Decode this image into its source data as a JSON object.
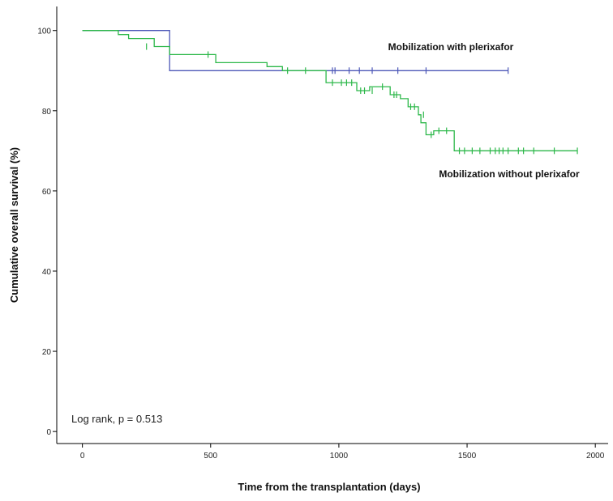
{
  "chart_data": {
    "type": "line",
    "title": "",
    "xlabel": "Time from the transplantation (days)",
    "ylabel": "Cumulative overall survival (%)",
    "xlim": [
      -100,
      2050
    ],
    "ylim": [
      -3,
      106
    ],
    "x_ticks": [
      0,
      500,
      1000,
      1500,
      2000
    ],
    "y_ticks": [
      0,
      20,
      40,
      60,
      80,
      100
    ],
    "grid": false,
    "annotation": "Log rank, p = 0.513",
    "series": [
      {
        "name": "Mobilization with plerixafor",
        "color": "#4d58b8",
        "step": true,
        "x": [
          0,
          340,
          340,
          1660
        ],
        "y": [
          100,
          100,
          90,
          90
        ],
        "censored": [
          {
            "x": 975,
            "y": 90
          },
          {
            "x": 985,
            "y": 90
          },
          {
            "x": 1040,
            "y": 90
          },
          {
            "x": 1080,
            "y": 90
          },
          {
            "x": 1130,
            "y": 90
          },
          {
            "x": 1230,
            "y": 90
          },
          {
            "x": 1340,
            "y": 90
          },
          {
            "x": 1660,
            "y": 90
          }
        ]
      },
      {
        "name": "Mobilization without plerixafor",
        "color": "#2db84a",
        "step": true,
        "x": [
          0,
          140,
          140,
          180,
          180,
          280,
          280,
          340,
          340,
          520,
          520,
          720,
          720,
          780,
          780,
          950,
          950,
          1070,
          1070,
          1120,
          1120,
          1200,
          1200,
          1240,
          1240,
          1270,
          1270,
          1310,
          1310,
          1320,
          1320,
          1340,
          1340,
          1370,
          1370,
          1450,
          1450,
          1930
        ],
        "y": [
          100,
          100,
          99,
          99,
          98,
          98,
          96,
          96,
          94,
          94,
          92,
          92,
          91,
          91,
          90,
          90,
          87,
          87,
          85,
          85,
          86,
          86,
          84,
          84,
          83,
          83,
          81,
          81,
          79,
          79,
          77,
          77,
          74,
          74,
          75,
          75,
          70,
          70
        ],
        "censored": [
          {
            "x": 250,
            "y": 96
          },
          {
            "x": 490,
            "y": 94
          },
          {
            "x": 800,
            "y": 90
          },
          {
            "x": 870,
            "y": 90
          },
          {
            "x": 975,
            "y": 87
          },
          {
            "x": 1010,
            "y": 87
          },
          {
            "x": 1030,
            "y": 87
          },
          {
            "x": 1050,
            "y": 87
          },
          {
            "x": 1085,
            "y": 85
          },
          {
            "x": 1100,
            "y": 85
          },
          {
            "x": 1130,
            "y": 85
          },
          {
            "x": 1170,
            "y": 86
          },
          {
            "x": 1215,
            "y": 84
          },
          {
            "x": 1225,
            "y": 84
          },
          {
            "x": 1280,
            "y": 81
          },
          {
            "x": 1295,
            "y": 81
          },
          {
            "x": 1330,
            "y": 79
          },
          {
            "x": 1360,
            "y": 74
          },
          {
            "x": 1390,
            "y": 75
          },
          {
            "x": 1420,
            "y": 75
          },
          {
            "x": 1470,
            "y": 70
          },
          {
            "x": 1490,
            "y": 70
          },
          {
            "x": 1520,
            "y": 70
          },
          {
            "x": 1550,
            "y": 70
          },
          {
            "x": 1590,
            "y": 70
          },
          {
            "x": 1610,
            "y": 70
          },
          {
            "x": 1625,
            "y": 70
          },
          {
            "x": 1640,
            "y": 70
          },
          {
            "x": 1660,
            "y": 70
          },
          {
            "x": 1700,
            "y": 70
          },
          {
            "x": 1720,
            "y": 70
          },
          {
            "x": 1760,
            "y": 70
          },
          {
            "x": 1840,
            "y": 70
          },
          {
            "x": 1930,
            "y": 70
          }
        ]
      }
    ]
  }
}
